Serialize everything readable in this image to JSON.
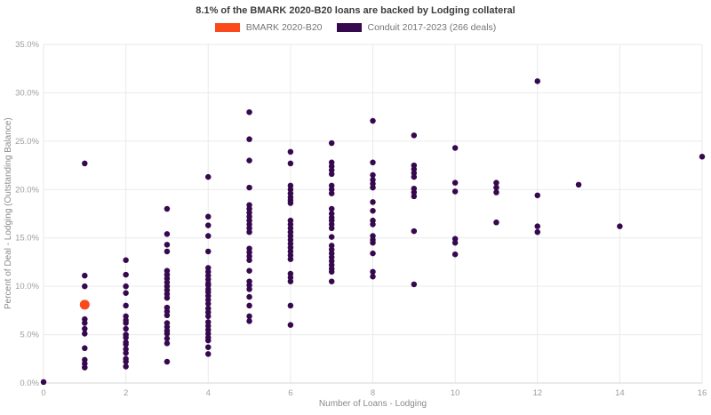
{
  "chart_data": {
    "type": "scatter",
    "title": "8.1% of the BMARK 2020-B20 loans are backed by Lodging collateral",
    "xlabel": "Number of Loans - Lodging",
    "ylabel": "Percent of Deal - Lodging (Outstanding Balance)",
    "xlim": [
      0,
      16
    ],
    "ylim": [
      0,
      35
    ],
    "grid": true,
    "legend_position": "top",
    "x_ticks": [
      {
        "value": 0,
        "label": "0"
      },
      {
        "value": 2,
        "label": "2"
      },
      {
        "value": 4,
        "label": "4"
      },
      {
        "value": 6,
        "label": "6"
      },
      {
        "value": 8,
        "label": "8"
      },
      {
        "value": 10,
        "label": "10"
      },
      {
        "value": 12,
        "label": "12"
      },
      {
        "value": 14,
        "label": "14"
      },
      {
        "value": 16,
        "label": "16"
      }
    ],
    "y_ticks": [
      {
        "value": 0,
        "label": "0.0%"
      },
      {
        "value": 5,
        "label": "5.0%"
      },
      {
        "value": 10,
        "label": "10.0%"
      },
      {
        "value": 15,
        "label": "15.0%"
      },
      {
        "value": 20,
        "label": "20.0%"
      },
      {
        "value": 25,
        "label": "25.0%"
      },
      {
        "value": 30,
        "label": "30.0%"
      },
      {
        "value": 35,
        "label": "35.0%"
      }
    ],
    "series": [
      {
        "name": "BMARK 2020-B20",
        "color": "#f9491d",
        "marker_size": 11,
        "points": [
          [
            1,
            8.1
          ]
        ]
      },
      {
        "name": "Conduit 2017-2023 (266 deals)",
        "color": "#36094f",
        "marker_size": 6.5,
        "points": [
          [
            0,
            0.1
          ],
          [
            1,
            22.7
          ],
          [
            1,
            11.1
          ],
          [
            1,
            10.0
          ],
          [
            1,
            6.6
          ],
          [
            1,
            6.2
          ],
          [
            1,
            5.6
          ],
          [
            1,
            5.1
          ],
          [
            1,
            3.6
          ],
          [
            1,
            2.4
          ],
          [
            1,
            2.0
          ],
          [
            1,
            1.6
          ],
          [
            2,
            12.7
          ],
          [
            2,
            11.2
          ],
          [
            2,
            10.0
          ],
          [
            2,
            9.3
          ],
          [
            2,
            8.0
          ],
          [
            2,
            6.9
          ],
          [
            2,
            6.5
          ],
          [
            2,
            6.2
          ],
          [
            2,
            5.6
          ],
          [
            2,
            5.0
          ],
          [
            2,
            4.7
          ],
          [
            2,
            4.2
          ],
          [
            2,
            4.0
          ],
          [
            2,
            3.5
          ],
          [
            2,
            3.1
          ],
          [
            2,
            2.5
          ],
          [
            2,
            2.2
          ],
          [
            2,
            1.7
          ],
          [
            3,
            18.0
          ],
          [
            3,
            15.4
          ],
          [
            3,
            14.3
          ],
          [
            3,
            13.6
          ],
          [
            3,
            11.6
          ],
          [
            3,
            11.2
          ],
          [
            3,
            10.8
          ],
          [
            3,
            10.4
          ],
          [
            3,
            10.0
          ],
          [
            3,
            9.6
          ],
          [
            3,
            9.2
          ],
          [
            3,
            8.8
          ],
          [
            3,
            7.8
          ],
          [
            3,
            7.4
          ],
          [
            3,
            7.0
          ],
          [
            3,
            6.2
          ],
          [
            3,
            5.8
          ],
          [
            3,
            5.4
          ],
          [
            3,
            5.1
          ],
          [
            3,
            4.6
          ],
          [
            3,
            4.1
          ],
          [
            3,
            2.2
          ],
          [
            4,
            21.3
          ],
          [
            4,
            17.2
          ],
          [
            4,
            16.3
          ],
          [
            4,
            15.2
          ],
          [
            4,
            13.6
          ],
          [
            4,
            11.9
          ],
          [
            4,
            11.5
          ],
          [
            4,
            11.1
          ],
          [
            4,
            10.7
          ],
          [
            4,
            10.3
          ],
          [
            4,
            10.1
          ],
          [
            4,
            9.7
          ],
          [
            4,
            9.4
          ],
          [
            4,
            9.0
          ],
          [
            4,
            8.6
          ],
          [
            4,
            8.2
          ],
          [
            4,
            7.7
          ],
          [
            4,
            7.3
          ],
          [
            4,
            6.9
          ],
          [
            4,
            6.3
          ],
          [
            4,
            5.9
          ],
          [
            4,
            5.5
          ],
          [
            4,
            5.1
          ],
          [
            4,
            4.7
          ],
          [
            4,
            4.4
          ],
          [
            4,
            3.7
          ],
          [
            4,
            3.0
          ],
          [
            5,
            28.0
          ],
          [
            5,
            25.2
          ],
          [
            5,
            23.0
          ],
          [
            5,
            20.2
          ],
          [
            5,
            18.4
          ],
          [
            5,
            18.0
          ],
          [
            5,
            17.6
          ],
          [
            5,
            17.2
          ],
          [
            5,
            16.8
          ],
          [
            5,
            16.4
          ],
          [
            5,
            16.0
          ],
          [
            5,
            15.6
          ],
          [
            5,
            13.9
          ],
          [
            5,
            13.5
          ],
          [
            5,
            13.1
          ],
          [
            5,
            12.7
          ],
          [
            5,
            11.6
          ],
          [
            5,
            10.5
          ],
          [
            5,
            10.1
          ],
          [
            5,
            9.7
          ],
          [
            5,
            8.9
          ],
          [
            5,
            8.0
          ],
          [
            5,
            6.9
          ],
          [
            5,
            6.4
          ],
          [
            6,
            23.9
          ],
          [
            6,
            22.7
          ],
          [
            6,
            20.4
          ],
          [
            6,
            20.0
          ],
          [
            6,
            19.6
          ],
          [
            6,
            19.2
          ],
          [
            6,
            18.9
          ],
          [
            6,
            18.6
          ],
          [
            6,
            16.8
          ],
          [
            6,
            16.4
          ],
          [
            6,
            16.0
          ],
          [
            6,
            15.6
          ],
          [
            6,
            15.2
          ],
          [
            6,
            14.8
          ],
          [
            6,
            14.4
          ],
          [
            6,
            14.0
          ],
          [
            6,
            13.6
          ],
          [
            6,
            13.2
          ],
          [
            6,
            12.8
          ],
          [
            6,
            11.3
          ],
          [
            6,
            10.9
          ],
          [
            6,
            10.5
          ],
          [
            6,
            8.0
          ],
          [
            6,
            6.0
          ],
          [
            7,
            24.8
          ],
          [
            7,
            22.8
          ],
          [
            7,
            22.4
          ],
          [
            7,
            22.0
          ],
          [
            7,
            21.6
          ],
          [
            7,
            20.4
          ],
          [
            7,
            20.0
          ],
          [
            7,
            19.6
          ],
          [
            7,
            18.0
          ],
          [
            7,
            17.5
          ],
          [
            7,
            17.1
          ],
          [
            7,
            16.8
          ],
          [
            7,
            16.4
          ],
          [
            7,
            16.0
          ],
          [
            7,
            15.1
          ],
          [
            7,
            14.2
          ],
          [
            7,
            13.8
          ],
          [
            7,
            13.4
          ],
          [
            7,
            13.0
          ],
          [
            7,
            12.6
          ],
          [
            7,
            12.2
          ],
          [
            7,
            11.8
          ],
          [
            7,
            11.5
          ],
          [
            7,
            10.5
          ],
          [
            8,
            27.1
          ],
          [
            8,
            22.8
          ],
          [
            8,
            21.5
          ],
          [
            8,
            21.0
          ],
          [
            8,
            20.6
          ],
          [
            8,
            20.2
          ],
          [
            8,
            18.7
          ],
          [
            8,
            17.8
          ],
          [
            8,
            16.8
          ],
          [
            8,
            16.4
          ],
          [
            8,
            15.2
          ],
          [
            8,
            14.8
          ],
          [
            8,
            14.5
          ],
          [
            8,
            13.4
          ],
          [
            8,
            11.5
          ],
          [
            8,
            11.0
          ],
          [
            9,
            25.6
          ],
          [
            9,
            22.5
          ],
          [
            9,
            22.1
          ],
          [
            9,
            21.7
          ],
          [
            9,
            21.3
          ],
          [
            9,
            20.1
          ],
          [
            9,
            19.7
          ],
          [
            9,
            19.3
          ],
          [
            9,
            15.7
          ],
          [
            9,
            10.2
          ],
          [
            10,
            24.3
          ],
          [
            10,
            20.7
          ],
          [
            10,
            19.8
          ],
          [
            10,
            14.9
          ],
          [
            10,
            14.5
          ],
          [
            10,
            13.3
          ],
          [
            11,
            20.7
          ],
          [
            11,
            20.2
          ],
          [
            11,
            19.7
          ],
          [
            11,
            16.6
          ],
          [
            12,
            31.2
          ],
          [
            12,
            19.4
          ],
          [
            12,
            16.2
          ],
          [
            12,
            15.6
          ],
          [
            13,
            20.5
          ],
          [
            14,
            16.2
          ],
          [
            16,
            23.4
          ]
        ]
      }
    ]
  }
}
